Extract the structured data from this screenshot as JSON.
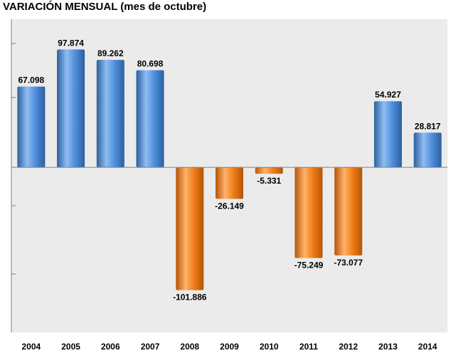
{
  "title": "VARIACIÓN MENSUAL (mes de octubre)",
  "chart_data": {
    "type": "bar",
    "title": "VARIACIÓN MENSUAL (mes de octubre)",
    "categories": [
      "2004",
      "2005",
      "2006",
      "2007",
      "2008",
      "2009",
      "2010",
      "2011",
      "2012",
      "2013",
      "2014"
    ],
    "values": [
      67098,
      97874,
      89262,
      80698,
      -101886,
      -26149,
      -5331,
      -75249,
      -73077,
      54927,
      28817
    ],
    "data_labels": [
      "67.098",
      "97.874",
      "89.262",
      "80.698",
      "-101.886",
      "-26.149",
      "-5.331",
      "-75.249",
      "-73.077",
      "54.927",
      "28.817"
    ],
    "xlabel": "",
    "ylabel": "",
    "ylim": [
      -137000,
      123000
    ],
    "grid": false,
    "legend": "none",
    "colors": {
      "positive": "#4f8fdd",
      "positive_dark": "#2d5f9e",
      "positive_light": "#8fbdf2",
      "negative": "#f07d18",
      "negative_dark": "#b55508",
      "negative_light": "#ffb36a",
      "plot_bg": "#ebebeb",
      "axis": "#7f7f7f"
    }
  }
}
